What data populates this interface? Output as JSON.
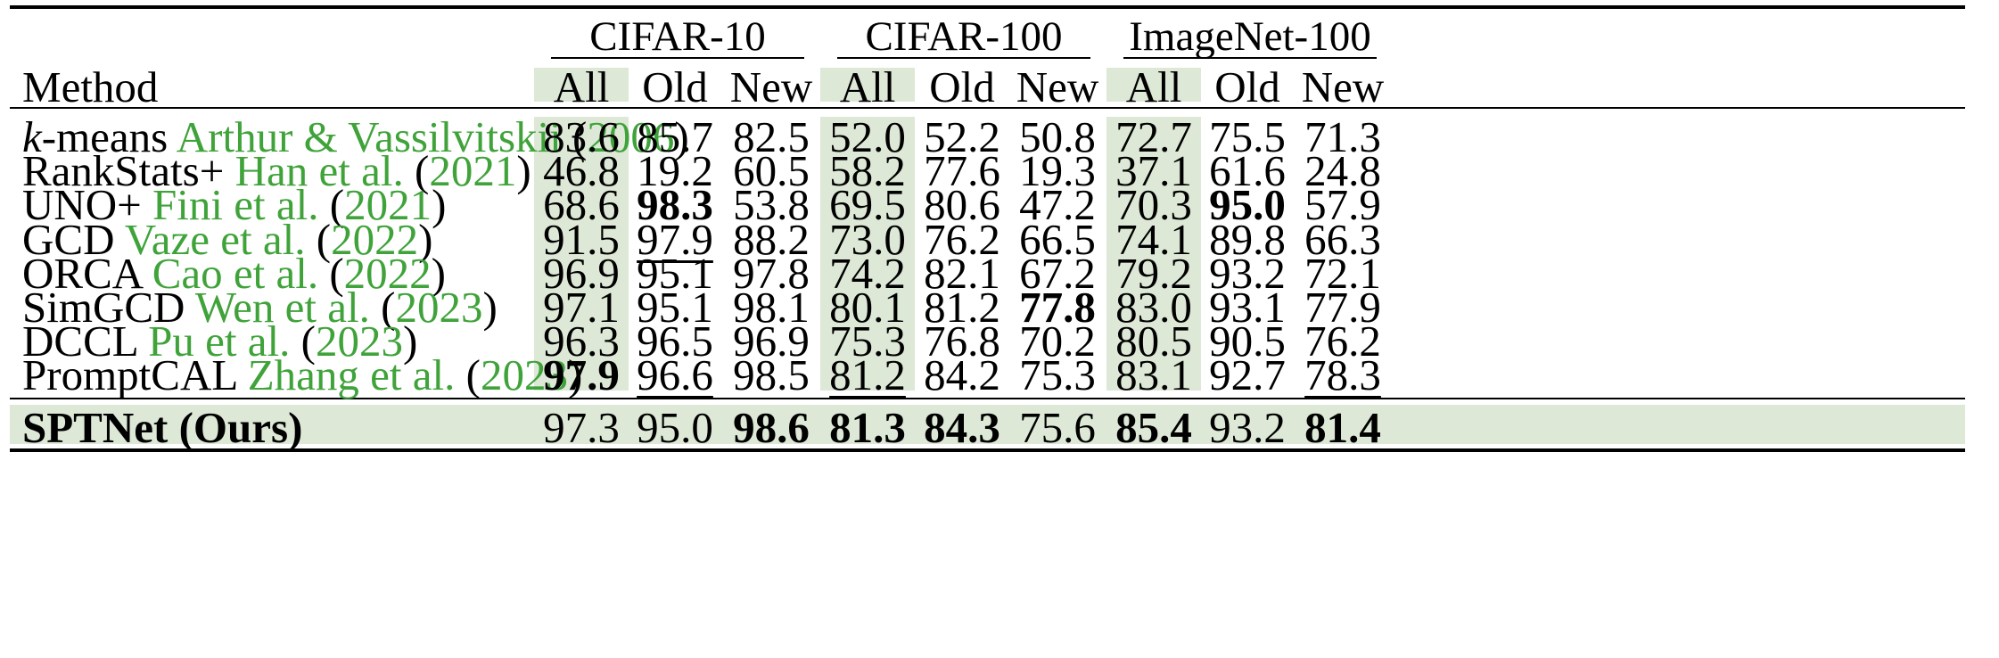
{
  "colors": {
    "shade": "#dde8d6",
    "citation": "#3fa33a",
    "text": "#000000"
  },
  "header": {
    "method_label": "Method",
    "datasets": [
      {
        "name": "CIFAR-10",
        "cols": [
          "All",
          "Old",
          "New"
        ]
      },
      {
        "name": "CIFAR-100",
        "cols": [
          "All",
          "Old",
          "New"
        ]
      },
      {
        "name": "ImageNet-100",
        "cols": [
          "All",
          "Old",
          "New"
        ]
      }
    ]
  },
  "rows": [
    {
      "name_italic": "k",
      "name": "-means",
      "author": "Arthur & Vassilvitskii",
      "year": "2006",
      "values": [
        "83.6",
        "85.7",
        "82.5",
        "52.0",
        "52.2",
        "50.8",
        "72.7",
        "75.5",
        "71.3"
      ],
      "bold": [],
      "underline": []
    },
    {
      "name": "RankStats+",
      "author": "Han et al.",
      "year": "2021",
      "values": [
        "46.8",
        "19.2",
        "60.5",
        "58.2",
        "77.6",
        "19.3",
        "37.1",
        "61.6",
        "24.8"
      ],
      "bold": [],
      "underline": []
    },
    {
      "name": "UNO+",
      "author": "Fini et al.",
      "year": "2021",
      "values": [
        "68.6",
        "98.3",
        "53.8",
        "69.5",
        "80.6",
        "47.2",
        "70.3",
        "95.0",
        "57.9"
      ],
      "bold": [
        1,
        7
      ],
      "underline": []
    },
    {
      "name": "GCD",
      "author": "Vaze et al.",
      "year": "2022",
      "values": [
        "91.5",
        "97.9",
        "88.2",
        "73.0",
        "76.2",
        "66.5",
        "74.1",
        "89.8",
        "66.3"
      ],
      "bold": [],
      "underline": [
        1
      ]
    },
    {
      "name": "ORCA",
      "author": "Cao et al.",
      "year": "2022",
      "values": [
        "96.9",
        "95.1",
        "97.8",
        "74.2",
        "82.1",
        "67.2",
        "79.2",
        "93.2",
        "72.1"
      ],
      "bold": [],
      "underline": []
    },
    {
      "name": "SimGCD",
      "author": "Wen et al.",
      "year": "2023",
      "values": [
        "97.1",
        "95.1",
        "98.1",
        "80.1",
        "81.2",
        "77.8",
        "83.0",
        "93.1",
        "77.9"
      ],
      "bold": [
        5
      ],
      "underline": []
    },
    {
      "name": "DCCL",
      "author": "Pu et al.",
      "year": "2023",
      "values": [
        "96.3",
        "96.5",
        "96.9",
        "75.3",
        "76.8",
        "70.2",
        "80.5",
        "90.5",
        "76.2"
      ],
      "bold": [],
      "underline": []
    },
    {
      "name": "PromptCAL",
      "author": "Zhang et al.",
      "year": "2023",
      "values": [
        "97.9",
        "96.6",
        "98.5",
        "81.2",
        "84.2",
        "75.3",
        "83.1",
        "92.7",
        "78.3"
      ],
      "bold": [
        0
      ],
      "underline": [
        1,
        3,
        8
      ]
    }
  ],
  "ours": {
    "name": "SPTNet (Ours)",
    "values": [
      "97.3",
      "95.0",
      "98.6",
      "81.3",
      "84.3",
      "75.6",
      "85.4",
      "93.2",
      "81.4"
    ],
    "bold": [
      2,
      3,
      4,
      6,
      8
    ],
    "underline": [
      0,
      5,
      7
    ]
  }
}
